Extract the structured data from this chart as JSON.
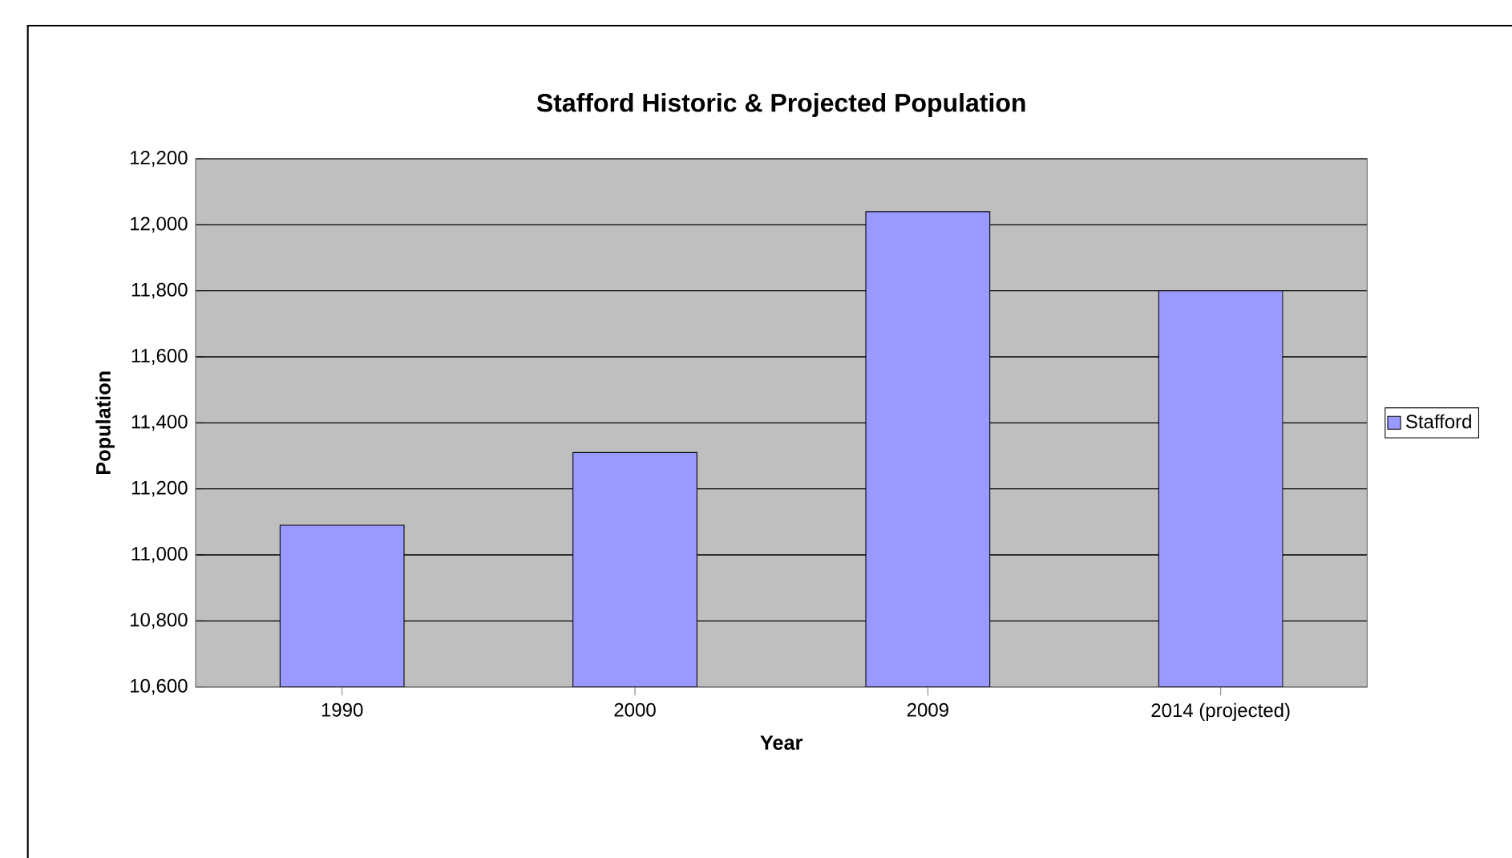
{
  "chart_data": {
    "type": "bar",
    "title": "Stafford Historic & Projected Population",
    "xlabel": "Year",
    "ylabel": "Population",
    "categories": [
      "1990",
      "2000",
      "2009",
      "2014 (projected)"
    ],
    "series": [
      {
        "name": "Stafford",
        "color": "#9999ff",
        "values": [
          11090,
          11310,
          12040,
          11800
        ]
      }
    ],
    "ylim": [
      10600,
      12200
    ],
    "yticks": [
      {
        "value": 10600,
        "label": "10,600"
      },
      {
        "value": 10800,
        "label": "10,800"
      },
      {
        "value": 11000,
        "label": "11,000"
      },
      {
        "value": 11200,
        "label": "11,200"
      },
      {
        "value": 11400,
        "label": "11,400"
      },
      {
        "value": 11600,
        "label": "11,600"
      },
      {
        "value": 11800,
        "label": "11,800"
      },
      {
        "value": 12000,
        "label": "12,000"
      },
      {
        "value": 12200,
        "label": "12,200"
      }
    ],
    "grid": "y",
    "legend": "right"
  }
}
